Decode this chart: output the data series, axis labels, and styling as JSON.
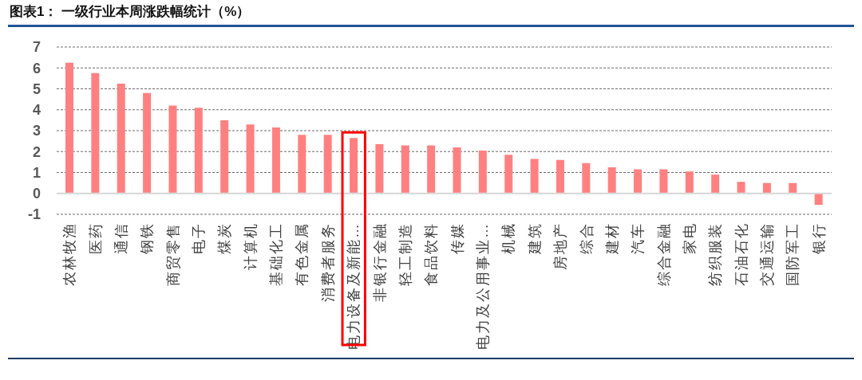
{
  "chart_data": {
    "type": "bar",
    "title": "图表1： 一级行业本周涨跌幅统计（%）",
    "categories": [
      "农林牧渔",
      "医药",
      "通信",
      "钢铁",
      "商贸零售",
      "电子",
      "煤炭",
      "计算机",
      "基础化工",
      "有色金属",
      "消费者服务",
      "电力设备及新能…",
      "非银行金融",
      "轻工制造",
      "食品饮料",
      "传媒",
      "电力及公用事业…",
      "机械",
      "建筑",
      "房地产",
      "综合",
      "建材",
      "汽车",
      "综合金融",
      "家电",
      "纺织服装",
      "石油石化",
      "交通运输",
      "国防军工",
      "银行"
    ],
    "values": [
      6.25,
      5.75,
      5.25,
      4.8,
      4.2,
      4.1,
      3.5,
      3.3,
      3.15,
      2.8,
      2.8,
      2.65,
      2.35,
      2.3,
      2.3,
      2.2,
      2.05,
      1.85,
      1.65,
      1.6,
      1.45,
      1.25,
      1.15,
      1.15,
      1.05,
      0.9,
      0.55,
      0.5,
      0.5,
      -0.55
    ],
    "color": "#ff8080",
    "ylim": [
      -1,
      7
    ],
    "yticks": [
      -1,
      0,
      1,
      2,
      3,
      4,
      5,
      6,
      7
    ],
    "grid": "y"
  }
}
